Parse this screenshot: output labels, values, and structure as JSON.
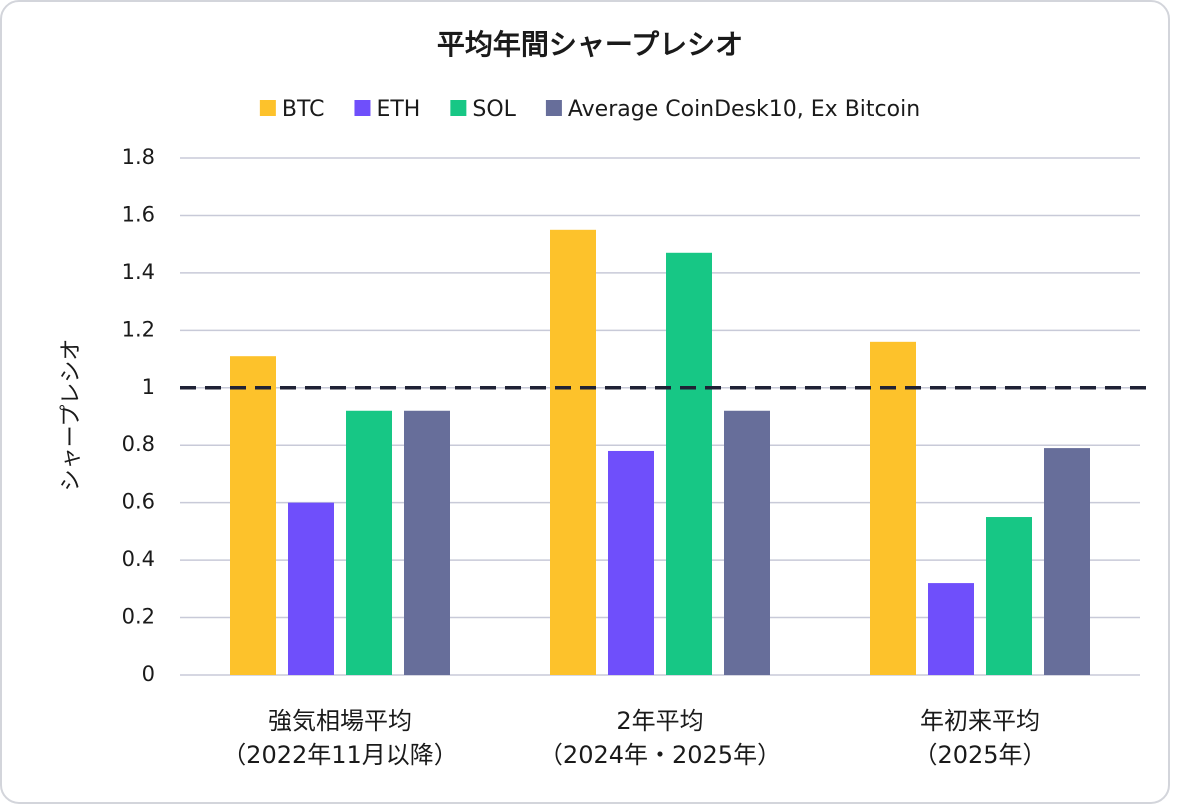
{
  "chart_data": {
    "type": "bar",
    "title": "平均年間シャープレシオ",
    "y_label": "シャープレシオ",
    "categories": [
      [
        "強気相場平均",
        "（2022年11月以降）"
      ],
      [
        "2年平均",
        "（2024年・2025年）"
      ],
      [
        "年初来平均",
        "（2025年）"
      ]
    ],
    "series": [
      {
        "name": "BTC",
        "color": "#fdc22b",
        "values": [
          1.11,
          1.55,
          1.16
        ]
      },
      {
        "name": "ETH",
        "color": "#6f4ffb",
        "values": [
          0.6,
          0.78,
          0.32
        ]
      },
      {
        "name": "SOL",
        "color": "#17c785",
        "values": [
          0.92,
          1.47,
          0.55
        ]
      },
      {
        "name": "Average CoinDesk10, Ex Bitcoin",
        "color": "#676e9a",
        "values": [
          0.92,
          0.92,
          0.79
        ]
      }
    ],
    "ylim": [
      0,
      1.8
    ],
    "yticks": [
      0,
      0.2,
      0.4,
      0.6,
      0.8,
      1,
      1.2,
      1.4,
      1.6,
      1.8
    ],
    "grid": true,
    "reference_line": 1,
    "legend": "top"
  }
}
